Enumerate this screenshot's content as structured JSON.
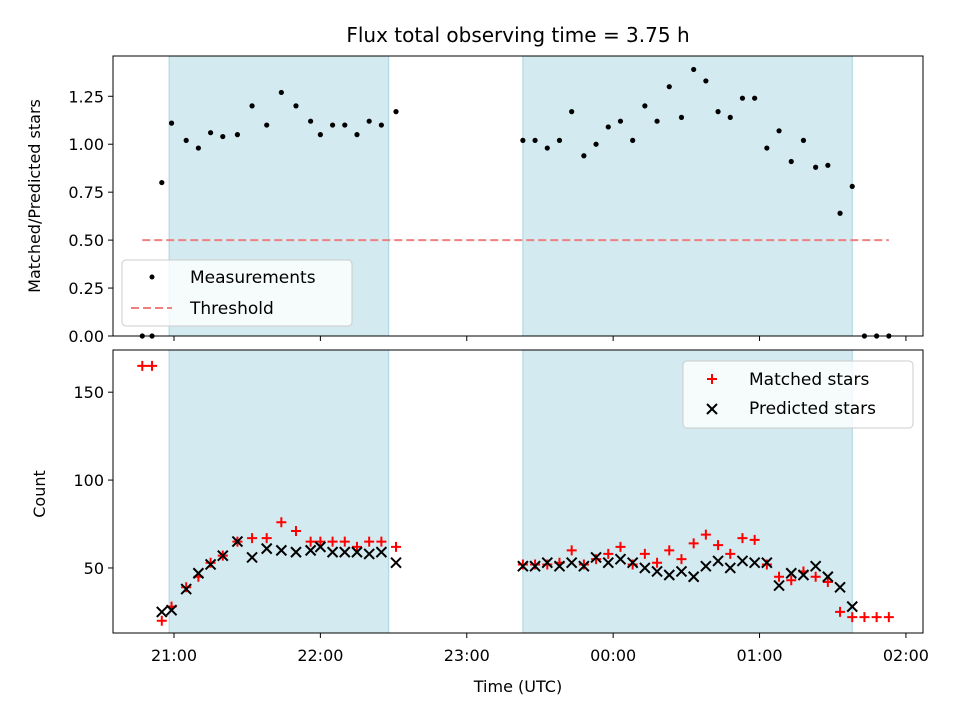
{
  "chart_data": [
    {
      "type": "scatter",
      "title": "Flux total observing time = 3.75 h",
      "xlabel": "",
      "ylabel": "Matched/Predicted stars",
      "ylim": [
        0,
        1.46
      ],
      "xlim": [
        "20:35",
        "02:07"
      ],
      "yticks": [
        "0.00",
        "0.25",
        "0.50",
        "0.75",
        "1.00",
        "1.25"
      ],
      "grid": false,
      "legend_position": "lower-left",
      "shaded_intervals": [
        [
          "20:58",
          "22:28"
        ],
        [
          "23:23",
          "01:38"
        ]
      ],
      "series": [
        {
          "name": "Measurements",
          "marker": "dot",
          "color": "#000000",
          "points": [
            [
              "20:47",
              0.0
            ],
            [
              "20:51",
              0.0
            ],
            [
              "20:55",
              0.8
            ],
            [
              "20:59",
              1.11
            ],
            [
              "21:05",
              1.02
            ],
            [
              "21:10",
              0.98
            ],
            [
              "21:15",
              1.06
            ],
            [
              "21:20",
              1.04
            ],
            [
              "21:26",
              1.05
            ],
            [
              "21:32",
              1.2
            ],
            [
              "21:38",
              1.1
            ],
            [
              "21:44",
              1.27
            ],
            [
              "21:50",
              1.2
            ],
            [
              "21:56",
              1.12
            ],
            [
              "22:00",
              1.05
            ],
            [
              "22:05",
              1.1
            ],
            [
              "22:10",
              1.1
            ],
            [
              "22:15",
              1.05
            ],
            [
              "22:20",
              1.12
            ],
            [
              "22:25",
              1.1
            ],
            [
              "22:31",
              1.17
            ],
            [
              "23:23",
              1.02
            ],
            [
              "23:28",
              1.02
            ],
            [
              "23:33",
              0.98
            ],
            [
              "23:38",
              1.02
            ],
            [
              "23:43",
              1.17
            ],
            [
              "23:48",
              0.94
            ],
            [
              "23:53",
              1.0
            ],
            [
              "23:58",
              1.09
            ],
            [
              "00:03",
              1.12
            ],
            [
              "00:08",
              1.02
            ],
            [
              "00:13",
              1.2
            ],
            [
              "00:18",
              1.12
            ],
            [
              "00:23",
              1.3
            ],
            [
              "00:28",
              1.14
            ],
            [
              "00:33",
              1.39
            ],
            [
              "00:38",
              1.33
            ],
            [
              "00:43",
              1.17
            ],
            [
              "00:48",
              1.14
            ],
            [
              "00:53",
              1.24
            ],
            [
              "00:58",
              1.24
            ],
            [
              "01:03",
              0.98
            ],
            [
              "01:08",
              1.07
            ],
            [
              "01:13",
              0.91
            ],
            [
              "01:18",
              1.02
            ],
            [
              "01:23",
              0.88
            ],
            [
              "01:28",
              0.89
            ],
            [
              "01:33",
              0.64
            ],
            [
              "01:38",
              0.78
            ],
            [
              "01:43",
              0.0
            ],
            [
              "01:48",
              0.0
            ],
            [
              "01:53",
              0.0
            ]
          ]
        },
        {
          "name": "Threshold",
          "style": "dashed",
          "color": "#f08080",
          "y": 0.5,
          "x_range": [
            "20:47",
            "01:53"
          ]
        }
      ]
    },
    {
      "type": "scatter",
      "title": "",
      "xlabel": "Time (UTC)",
      "ylabel": "Count",
      "ylim": [
        13,
        174
      ],
      "xlim": [
        "20:35",
        "02:07"
      ],
      "yticks": [
        "50",
        "100",
        "150"
      ],
      "xticks": [
        "21:00",
        "22:00",
        "23:00",
        "00:00",
        "01:00",
        "02:00"
      ],
      "grid": false,
      "legend_position": "top-right",
      "shaded_intervals": [
        [
          "20:58",
          "22:28"
        ],
        [
          "23:23",
          "01:38"
        ]
      ],
      "series": [
        {
          "name": "Matched stars",
          "marker": "plus",
          "color": "#ff0000",
          "points": [
            [
              "20:47",
              165
            ],
            [
              "20:51",
              165
            ],
            [
              "20:55",
              20
            ],
            [
              "20:59",
              28
            ],
            [
              "21:05",
              39
            ],
            [
              "21:10",
              45
            ],
            [
              "21:15",
              53
            ],
            [
              "21:20",
              57
            ],
            [
              "21:26",
              65
            ],
            [
              "21:32",
              67
            ],
            [
              "21:38",
              67
            ],
            [
              "21:44",
              76
            ],
            [
              "21:50",
              71
            ],
            [
              "21:56",
              65
            ],
            [
              "22:00",
              65
            ],
            [
              "22:05",
              65
            ],
            [
              "22:10",
              65
            ],
            [
              "22:15",
              62
            ],
            [
              "22:20",
              65
            ],
            [
              "22:25",
              65
            ],
            [
              "22:31",
              62
            ],
            [
              "23:23",
              52
            ],
            [
              "23:28",
              52
            ],
            [
              "23:33",
              52
            ],
            [
              "23:38",
              53
            ],
            [
              "23:43",
              60
            ],
            [
              "23:48",
              52
            ],
            [
              "23:53",
              55
            ],
            [
              "23:58",
              58
            ],
            [
              "00:03",
              62
            ],
            [
              "00:08",
              52
            ],
            [
              "00:13",
              58
            ],
            [
              "00:18",
              53
            ],
            [
              "00:23",
              60
            ],
            [
              "00:28",
              55
            ],
            [
              "00:33",
              64
            ],
            [
              "00:38",
              69
            ],
            [
              "00:43",
              63
            ],
            [
              "00:48",
              58
            ],
            [
              "00:53",
              67
            ],
            [
              "00:58",
              66
            ],
            [
              "01:03",
              52
            ],
            [
              "01:08",
              45
            ],
            [
              "01:13",
              43
            ],
            [
              "01:18",
              48
            ],
            [
              "01:23",
              45
            ],
            [
              "01:28",
              42
            ],
            [
              "01:33",
              25
            ],
            [
              "01:38",
              22
            ],
            [
              "01:43",
              22
            ],
            [
              "01:48",
              22
            ],
            [
              "01:53",
              22
            ]
          ]
        },
        {
          "name": "Predicted stars",
          "marker": "x",
          "color": "#000000",
          "points": [
            [
              "20:55",
              25
            ],
            [
              "20:59",
              26
            ],
            [
              "21:05",
              38
            ],
            [
              "21:10",
              47
            ],
            [
              "21:15",
              52
            ],
            [
              "21:20",
              57
            ],
            [
              "21:26",
              65
            ],
            [
              "21:32",
              56
            ],
            [
              "21:38",
              61
            ],
            [
              "21:44",
              60
            ],
            [
              "21:50",
              59
            ],
            [
              "21:56",
              60
            ],
            [
              "22:00",
              62
            ],
            [
              "22:05",
              59
            ],
            [
              "22:10",
              59
            ],
            [
              "22:15",
              59
            ],
            [
              "22:20",
              58
            ],
            [
              "22:25",
              59
            ],
            [
              "22:31",
              53
            ],
            [
              "23:23",
              51
            ],
            [
              "23:28",
              51
            ],
            [
              "23:33",
              53
            ],
            [
              "23:38",
              51
            ],
            [
              "23:43",
              53
            ],
            [
              "23:48",
              51
            ],
            [
              "23:53",
              56
            ],
            [
              "23:58",
              53
            ],
            [
              "00:03",
              55
            ],
            [
              "00:08",
              53
            ],
            [
              "00:13",
              50
            ],
            [
              "00:18",
              48
            ],
            [
              "00:23",
              46
            ],
            [
              "00:28",
              48
            ],
            [
              "00:33",
              45
            ],
            [
              "00:38",
              51
            ],
            [
              "00:43",
              54
            ],
            [
              "00:48",
              50
            ],
            [
              "00:53",
              54
            ],
            [
              "00:58",
              53
            ],
            [
              "01:03",
              53
            ],
            [
              "01:08",
              40
            ],
            [
              "01:13",
              47
            ],
            [
              "01:18",
              46
            ],
            [
              "01:23",
              51
            ],
            [
              "01:28",
              45
            ],
            [
              "01:33",
              39
            ],
            [
              "01:38",
              28
            ]
          ]
        }
      ]
    }
  ]
}
